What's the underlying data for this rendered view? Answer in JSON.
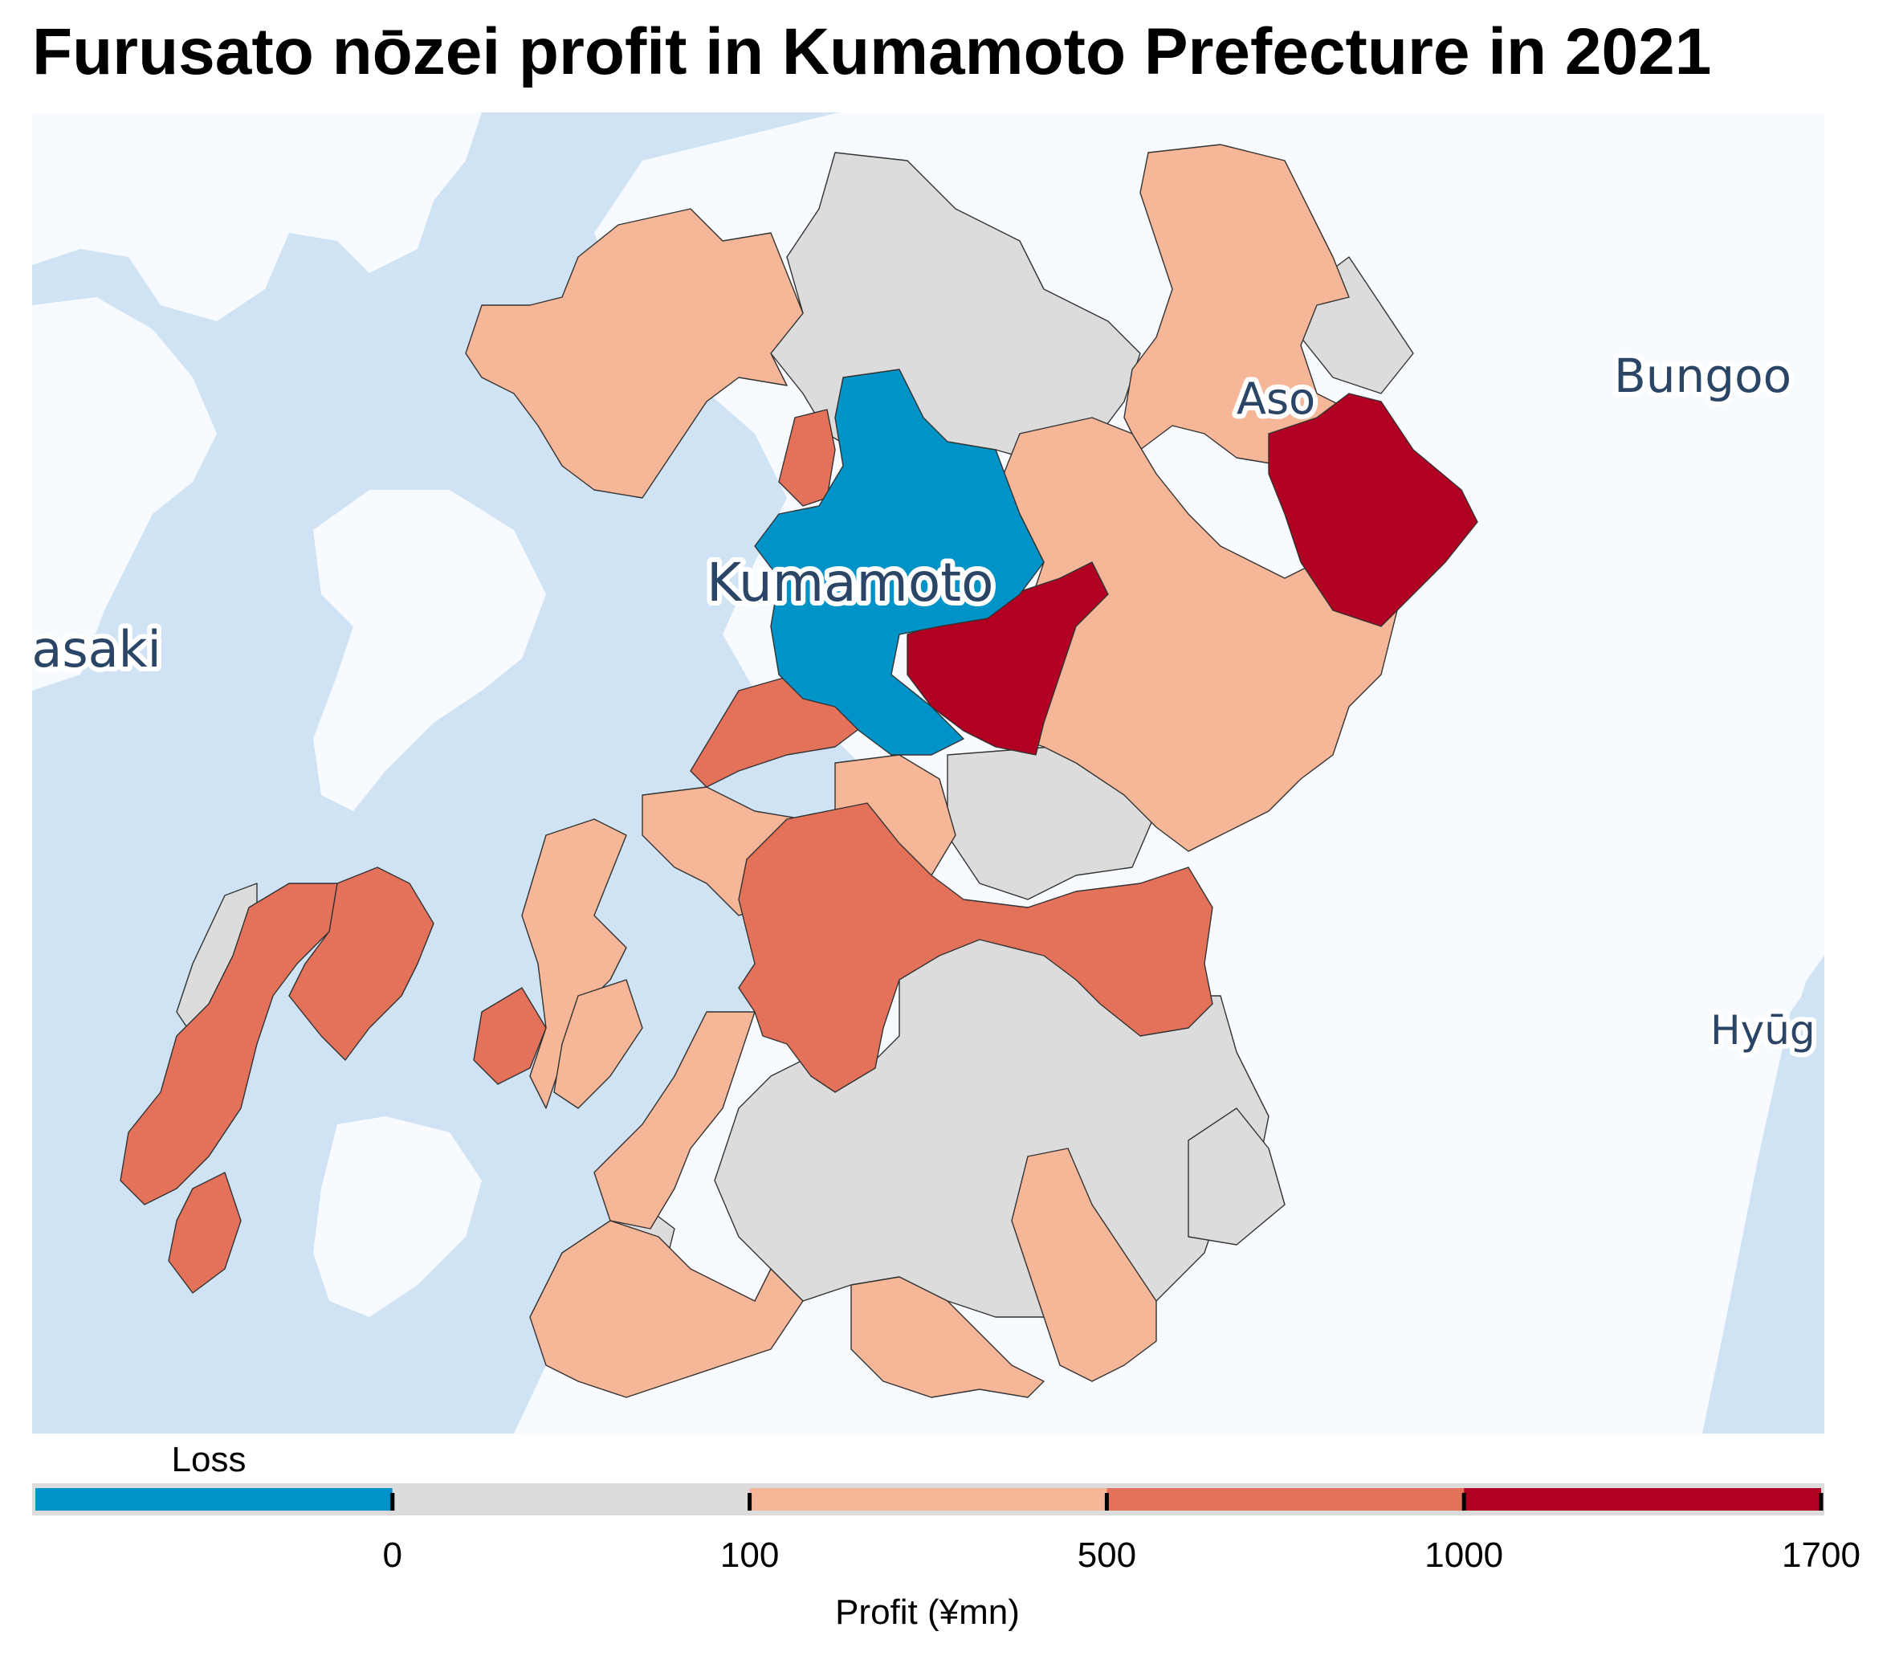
{
  "title": "Furusato nōzei profit in Kumamoto Prefecture in 2021",
  "map_labels": {
    "kumamoto": "Kumamoto",
    "aso": "Aso",
    "bungoono": "Bungoo",
    "nagasaki": "gasaki",
    "hyuga": "Hyūg"
  },
  "legend": {
    "title": "Profit (¥mn)",
    "loss_label": "Loss",
    "ticks": [
      "0",
      "100",
      "500",
      "1000",
      "1700"
    ],
    "bins": [
      {
        "label": "Loss",
        "color": "#0093c8"
      },
      {
        "label": "0–100",
        "color": "#dcdcdc"
      },
      {
        "label": "100–500",
        "color": "#f6b799"
      },
      {
        "label": "500–1000",
        "color": "#e4725b"
      },
      {
        "label": "1000–1700",
        "color": "#b20023"
      }
    ]
  },
  "colors": {
    "sea": "#cfe3f4",
    "land": "#f7fbff",
    "border": "#333333"
  }
}
